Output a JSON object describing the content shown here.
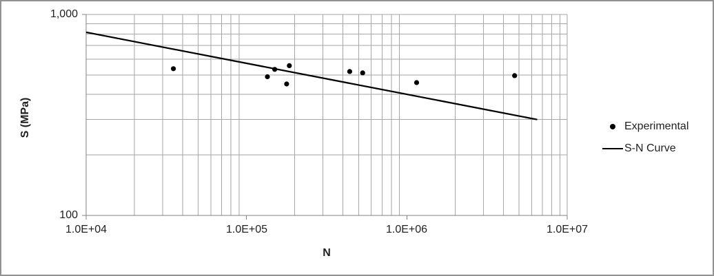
{
  "chart_data": {
    "type": "scatter",
    "title": "",
    "xlabel": "N",
    "ylabel": "S (MPa)",
    "x_scale": "log",
    "y_scale": "log",
    "xlim": [
      10000,
      10000000
    ],
    "ylim": [
      100,
      1000
    ],
    "grid": "minor logarithmic gridlines on both axes",
    "legend_position": "right-outside",
    "x_ticks": [
      {
        "label": "1.0E+04",
        "value": 10000
      },
      {
        "label": "1.0E+05",
        "value": 100000
      },
      {
        "label": "1.0E+06",
        "value": 1000000
      },
      {
        "label": "1.0E+07",
        "value": 10000000
      }
    ],
    "y_ticks": [
      {
        "label": "1,000",
        "value": 1000
      },
      {
        "label": "100",
        "value": 100
      }
    ],
    "series": [
      {
        "name": "Experimental",
        "type": "scatter",
        "marker": "filled-circle",
        "color": "#000000",
        "points": [
          [
            35000,
            537
          ],
          [
            135000,
            490
          ],
          [
            150000,
            533
          ],
          [
            185000,
            556
          ],
          [
            178000,
            451
          ],
          [
            440000,
            520
          ],
          [
            530000,
            512
          ],
          [
            1150000,
            458
          ],
          [
            4700000,
            496
          ]
        ]
      },
      {
        "name": "S-N Curve",
        "type": "line",
        "color": "#000000",
        "points": [
          [
            10000,
            815
          ],
          [
            6500000,
            300
          ]
        ]
      }
    ],
    "colors": {
      "gridline": "#A6A6A6",
      "axis": "#808080",
      "text": "#1F1F1F",
      "frame_border": "#919191",
      "background": "#FFFFFF"
    }
  }
}
